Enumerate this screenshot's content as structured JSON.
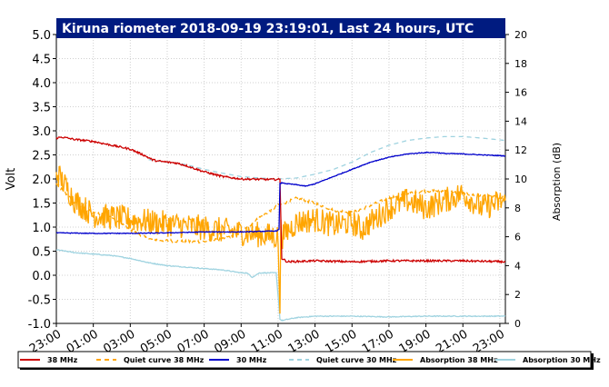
{
  "chart_data": {
    "type": "line",
    "title": "Kiruna riometer 2018-09-19 23:19:01, Last 24 hours, UTC",
    "ylabel": "Volt",
    "y2label": "Absorption (dB)",
    "ylim": [
      -1.0,
      5.0
    ],
    "y2lim": [
      0,
      20
    ],
    "yticks": [
      "-1.0",
      "-0.5",
      "0.0",
      "0.5",
      "1.0",
      "1.5",
      "2.0",
      "2.5",
      "3.0",
      "3.5",
      "4.0",
      "4.5",
      "5.0"
    ],
    "y2ticks": [
      "0",
      "2",
      "4",
      "6",
      "8",
      "10",
      "12",
      "14",
      "16",
      "18",
      "20"
    ],
    "xlim": [
      0,
      24.3
    ],
    "xticks": [
      {
        "pos": 0,
        "label": "23:00"
      },
      {
        "pos": 2,
        "label": "01:00"
      },
      {
        "pos": 4,
        "label": "03:00"
      },
      {
        "pos": 6,
        "label": "05:00"
      },
      {
        "pos": 8,
        "label": "07:00"
      },
      {
        "pos": 10,
        "label": "09:00"
      },
      {
        "pos": 12,
        "label": "11:00"
      },
      {
        "pos": 14,
        "label": "13:00"
      },
      {
        "pos": 16,
        "label": "15:00"
      },
      {
        "pos": 18,
        "label": "17:00"
      },
      {
        "pos": 20,
        "label": "19:00"
      },
      {
        "pos": 22,
        "label": "21:00"
      },
      {
        "pos": 24,
        "label": "23:00"
      }
    ],
    "grid": true,
    "legend_position": "bottom",
    "series": [
      {
        "name": "38 MHz",
        "axis": "left",
        "style": "solid",
        "color": "#cc0000",
        "noise": 0.02,
        "x": [
          0,
          0.3,
          1,
          2,
          3,
          4,
          4.7,
          5.2,
          5.5,
          6.5,
          7,
          8,
          9,
          10,
          11.5,
          12.1,
          12.2,
          12.5,
          14,
          16,
          18,
          20,
          22,
          24.3
        ],
        "y": [
          2.85,
          2.87,
          2.82,
          2.78,
          2.7,
          2.62,
          2.5,
          2.4,
          2.37,
          2.33,
          2.28,
          2.15,
          2.05,
          2.0,
          1.99,
          1.99,
          0.35,
          0.28,
          0.3,
          0.28,
          0.3,
          0.3,
          0.3,
          0.28
        ]
      },
      {
        "name": "Quiet curve 38 MHz",
        "axis": "left",
        "style": "dashed",
        "color": "#ffa500",
        "noise": 0.03,
        "x": [
          0,
          1,
          2,
          3,
          4,
          5,
          6,
          7,
          8,
          9,
          10,
          11,
          12,
          13,
          14,
          15,
          16,
          17,
          18,
          19,
          20,
          21,
          22,
          23,
          24.3
        ],
        "y": [
          1.9,
          1.5,
          1.3,
          1.2,
          0.95,
          0.75,
          0.72,
          0.7,
          0.7,
          0.75,
          0.9,
          1.2,
          1.45,
          1.6,
          1.5,
          1.35,
          1.3,
          1.45,
          1.6,
          1.7,
          1.75,
          1.75,
          1.7,
          1.65,
          1.6
        ]
      },
      {
        "name": "30 MHz",
        "axis": "left",
        "style": "solid",
        "color": "#0000cc",
        "noise": 0.008,
        "x": [
          0,
          2,
          4,
          6,
          8,
          10,
          11.9,
          12.05,
          12.1,
          12.2,
          12.5,
          13,
          13.5,
          14,
          15,
          16,
          17,
          18,
          19,
          20,
          20.5,
          21,
          22,
          23,
          24.3
        ],
        "y": [
          0.88,
          0.87,
          0.87,
          0.88,
          0.9,
          0.9,
          0.92,
          0.95,
          1.9,
          1.92,
          1.9,
          1.88,
          1.85,
          1.9,
          2.05,
          2.2,
          2.35,
          2.45,
          2.52,
          2.55,
          2.55,
          2.53,
          2.52,
          2.5,
          2.48
        ]
      },
      {
        "name": "Quiet curve 30 MHz",
        "axis": "left",
        "style": "dashed",
        "color": "#9fd3e0",
        "noise": 0.0,
        "x": [
          5,
          6,
          7,
          8,
          9,
          10,
          11,
          12,
          13,
          14,
          15,
          16,
          17,
          18,
          19,
          20,
          21,
          22,
          23,
          24.3
        ],
        "y": [
          2.4,
          2.35,
          2.3,
          2.2,
          2.12,
          2.05,
          2.02,
          2.0,
          2.02,
          2.1,
          2.2,
          2.35,
          2.55,
          2.7,
          2.8,
          2.85,
          2.88,
          2.88,
          2.85,
          2.8
        ]
      },
      {
        "name": "Absorption 38 MHz",
        "axis": "right",
        "style": "solid",
        "color": "#ffa500",
        "noise": 0.9,
        "x": [
          0,
          0.5,
          1,
          1.5,
          2,
          12.0,
          12.1,
          12.15,
          12.2,
          13,
          14,
          15,
          16,
          16.5,
          17,
          18,
          19,
          20,
          21,
          22,
          23,
          24.3
        ],
        "y": [
          10.5,
          9.5,
          8.5,
          8.0,
          7.5,
          6.0,
          0,
          7.5,
          6.0,
          7.0,
          7.2,
          6.8,
          7.0,
          6.5,
          7.0,
          8.0,
          8.5,
          8.0,
          8.5,
          9.0,
          8.0,
          8.5
        ]
      },
      {
        "name": "Absorption 30 MHz",
        "axis": "right",
        "style": "solid",
        "color": "#9fd3e0",
        "noise": 0.03,
        "x": [
          0,
          1,
          2,
          3,
          4,
          5,
          6,
          7,
          8,
          9,
          10,
          10.3,
          10.6,
          11,
          11.9,
          12.1,
          12.2,
          13,
          14,
          16,
          18,
          20,
          22,
          24.3
        ],
        "y": [
          5.1,
          4.9,
          4.8,
          4.7,
          4.5,
          4.2,
          4.0,
          3.9,
          3.8,
          3.7,
          3.5,
          3.5,
          3.2,
          3.5,
          3.5,
          0.3,
          0.2,
          0.4,
          0.5,
          0.5,
          0.45,
          0.5,
          0.5,
          0.5
        ]
      }
    ]
  }
}
